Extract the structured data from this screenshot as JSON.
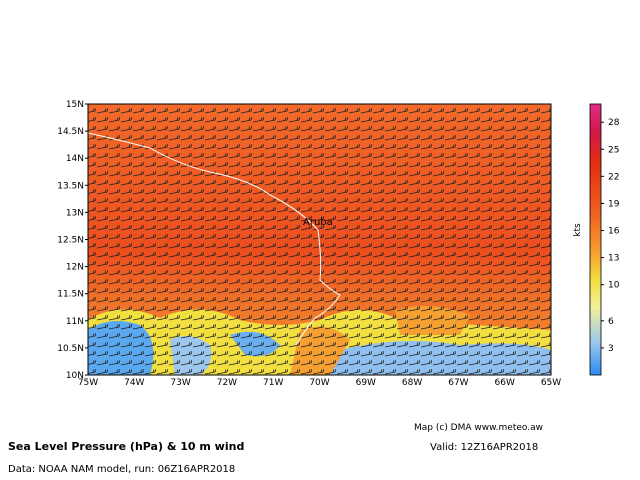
{
  "map": {
    "lat_labels": [
      "10N",
      "10.5N",
      "11N",
      "11.5N",
      "12N",
      "12.5N",
      "13N",
      "13.5N",
      "14N",
      "14.5N",
      "15N"
    ],
    "lon_labels": [
      "75W",
      "74W",
      "73W",
      "72W",
      "71W",
      "70W",
      "69W",
      "68W",
      "67W",
      "66W",
      "65W"
    ],
    "place_label": "Aruba",
    "colorbar": {
      "unit": "kts",
      "ticks": [
        "3",
        "6",
        "10",
        "13",
        "16",
        "19",
        "22",
        "25",
        "28"
      ]
    },
    "credit": "Map (c) DMA www.meteo.aw",
    "title": "Sea Level Pressure (hPa) & 10 m wind",
    "valid": "Valid: 12Z16APR2018",
    "source": "Data: NOAA NAM model, run: 06Z16APR2018"
  }
}
